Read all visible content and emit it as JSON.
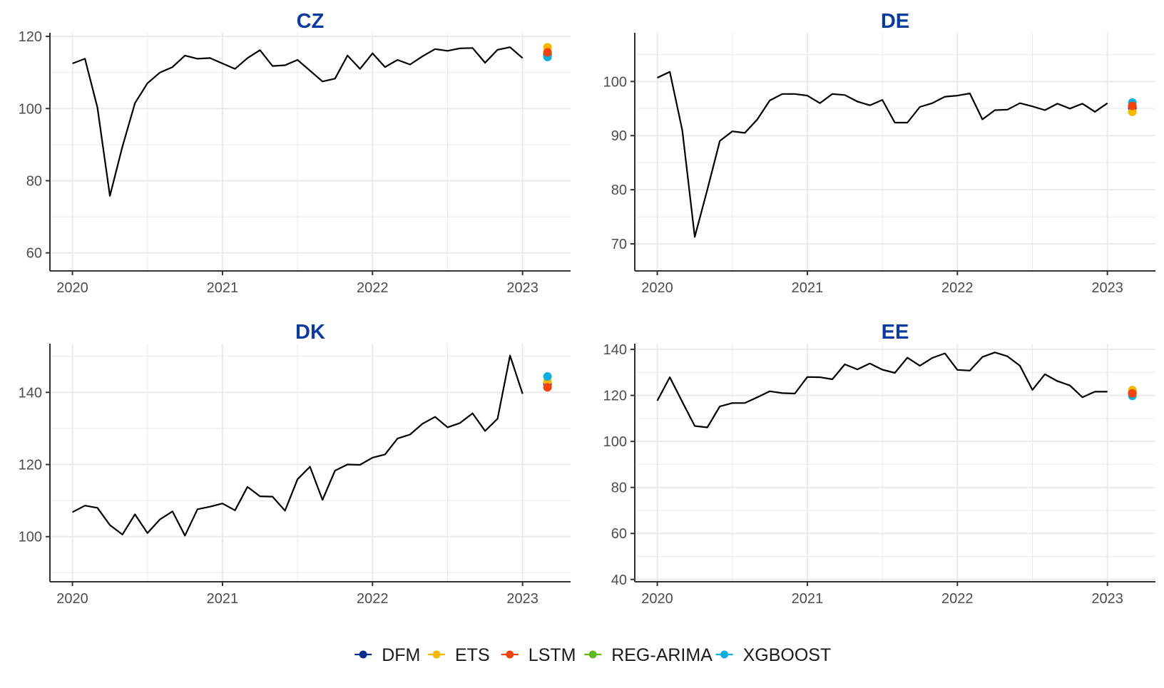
{
  "chart_data": {
    "type": "line",
    "panels": [
      {
        "title": "CZ",
        "x_tick_labels": [
          "2020",
          "2021",
          "2022",
          "2023"
        ],
        "x_ticks": [
          2020,
          2021,
          2022,
          2023
        ],
        "xlim": [
          2019.85,
          2023.32
        ],
        "y_ticks": [
          60,
          80,
          100,
          120
        ],
        "ylim": [
          55,
          121
        ],
        "series": {
          "start": 2020.0,
          "step_months": 1,
          "values": [
            112.5,
            113.8,
            100.3,
            75.8,
            89.5,
            101.5,
            107.0,
            110.0,
            111.5,
            114.7,
            113.8,
            114.0,
            112.5,
            111.0,
            114.0,
            116.2,
            111.8,
            112.0,
            113.5,
            110.5,
            107.5,
            108.3,
            114.7,
            111.0,
            115.3,
            111.5,
            113.5,
            112.2,
            114.5,
            116.5,
            116.0,
            116.7,
            116.8,
            112.7,
            116.3,
            117.0,
            114.0
          ]
        },
        "forecast_date": 2023.166,
        "forecasts": {
          "DFM": 115.0,
          "ETS": 117.0,
          "LSTM": 115.6,
          "REG-ARIMA": 114.7,
          "XGBOOST": 114.3
        }
      },
      {
        "title": "DE",
        "x_tick_labels": [
          "2020",
          "2021",
          "2022",
          "2023"
        ],
        "x_ticks": [
          2020,
          2021,
          2022,
          2023
        ],
        "xlim": [
          2019.85,
          2023.32
        ],
        "y_ticks": [
          70,
          80,
          90,
          100
        ],
        "ylim": [
          65,
          109
        ],
        "series": {
          "start": 2020.0,
          "step_months": 1,
          "values": [
            100.7,
            101.8,
            91.0,
            71.3,
            80.0,
            89.0,
            90.8,
            90.5,
            93.0,
            96.5,
            97.7,
            97.7,
            97.4,
            96.0,
            97.7,
            97.5,
            96.3,
            95.6,
            96.6,
            92.4,
            92.4,
            95.3,
            96.0,
            97.2,
            97.4,
            97.8,
            93.0,
            94.7,
            94.8,
            96.0,
            95.4,
            94.7,
            95.9,
            95.0,
            95.9,
            94.4,
            96.0
          ]
        },
        "forecast_date": 2023.166,
        "forecasts": {
          "DFM": 95.1,
          "ETS": 94.4,
          "LSTM": 95.5,
          "REG-ARIMA": 95.3,
          "XGBOOST": 96.1
        }
      },
      {
        "title": "DK",
        "x_tick_labels": [
          "2020",
          "2021",
          "2022",
          "2023"
        ],
        "x_ticks": [
          2020,
          2021,
          2022,
          2023
        ],
        "xlim": [
          2019.85,
          2023.32
        ],
        "y_ticks": [
          100,
          120,
          140
        ],
        "ylim": [
          87.5,
          153.5
        ],
        "series": {
          "start": 2020.0,
          "step_months": 1,
          "values": [
            106.8,
            108.6,
            108.0,
            103.2,
            100.6,
            106.2,
            101.0,
            104.8,
            107.0,
            100.3,
            107.6,
            108.3,
            109.2,
            107.3,
            113.8,
            111.2,
            111.1,
            107.2,
            115.9,
            119.4,
            110.2,
            118.3,
            120.0,
            119.9,
            121.9,
            122.8,
            127.2,
            128.3,
            131.3,
            133.2,
            130.3,
            131.5,
            134.2,
            129.3,
            132.7,
            150.2,
            139.6
          ]
        },
        "forecast_date": 2023.166,
        "forecasts": {
          "DFM": 142.3,
          "ETS": 143.0,
          "LSTM": 141.4,
          "REG-ARIMA": 142.6,
          "XGBOOST": 144.4
        }
      },
      {
        "title": "EE",
        "x_tick_labels": [
          "2020",
          "2021",
          "2022",
          "2023"
        ],
        "x_ticks": [
          2020,
          2021,
          2022,
          2023
        ],
        "xlim": [
          2019.85,
          2023.32
        ],
        "y_ticks": [
          40,
          60,
          80,
          100,
          120,
          140
        ],
        "ylim": [
          39,
          142.5
        ],
        "series": {
          "start": 2020.0,
          "step_months": 1,
          "values": [
            117.7,
            127.9,
            117.2,
            106.7,
            106.1,
            115.2,
            116.7,
            116.7,
            119.2,
            121.8,
            121.0,
            120.8,
            128.0,
            127.9,
            127.0,
            133.5,
            131.3,
            133.9,
            131.2,
            129.8,
            136.4,
            132.9,
            136.3,
            138.3,
            131.1,
            130.8,
            136.7,
            138.7,
            137.0,
            132.9,
            122.4,
            129.2,
            126.2,
            124.3,
            119.2,
            121.6,
            121.6
          ]
        },
        "forecast_date": 2023.166,
        "forecasts": {
          "DFM": 121.0,
          "ETS": 122.3,
          "LSTM": 120.9,
          "REG-ARIMA": 121.2,
          "XGBOOST": 119.8
        }
      }
    ],
    "legend": {
      "position": "bottom",
      "items": [
        {
          "name": "DFM",
          "color": "#0b2d8f"
        },
        {
          "name": "ETS",
          "color": "#f5b700"
        },
        {
          "name": "LSTM",
          "color": "#f0440f"
        },
        {
          "name": "REG-ARIMA",
          "color": "#5fb820"
        },
        {
          "name": "XGBOOST",
          "color": "#12ade0"
        }
      ]
    },
    "colors": {
      "line": "#000000",
      "title": "#0b3aa0",
      "grid": "#ebebeb",
      "axis": "#333333"
    },
    "grid": true
  }
}
